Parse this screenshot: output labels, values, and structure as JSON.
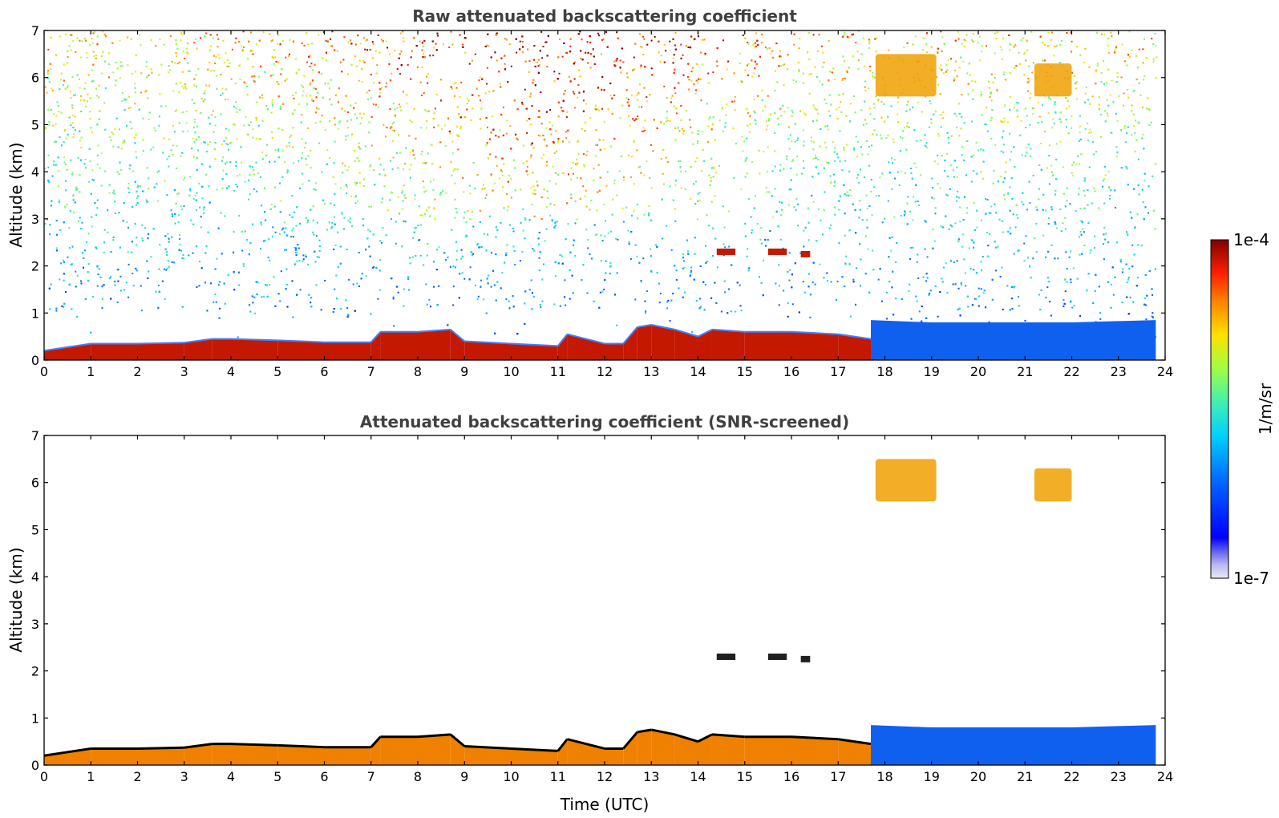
{
  "chart_data": [
    {
      "type": "heatmap",
      "title": "Raw attenuated backscattering coefficient",
      "xlabel": "",
      "ylabel": "Altitude (km)",
      "xlim": [
        0,
        24
      ],
      "ylim": [
        0,
        7
      ],
      "x_ticks": [
        "0",
        "1",
        "2",
        "3",
        "4",
        "5",
        "6",
        "7",
        "8",
        "9",
        "10",
        "11",
        "12",
        "13",
        "14",
        "15",
        "16",
        "17",
        "18",
        "19",
        "20",
        "21",
        "22",
        "23",
        "24"
      ],
      "y_ticks": [
        "0",
        "1",
        "2",
        "3",
        "4",
        "5",
        "6",
        "7"
      ],
      "grid": false,
      "boundary_layer": {
        "x": [
          0,
          1,
          2,
          3,
          3.6,
          4,
          5,
          6,
          7,
          7.2,
          8,
          8.7,
          9,
          10,
          11,
          11.2,
          12,
          12.4,
          12.7,
          13,
          13.5,
          14,
          14.3,
          15,
          16,
          17,
          17.7
        ],
        "top_km": [
          0.2,
          0.35,
          0.35,
          0.37,
          0.45,
          0.45,
          0.42,
          0.38,
          0.38,
          0.6,
          0.6,
          0.65,
          0.4,
          0.35,
          0.3,
          0.55,
          0.35,
          0.35,
          0.7,
          0.75,
          0.65,
          0.5,
          0.65,
          0.6,
          0.6,
          0.55,
          0.45
        ]
      },
      "noise_level": "high",
      "cirrus_clouds": [
        {
          "x_start": 17.8,
          "x_end": 19.1,
          "y_bottom_km": 5.6,
          "y_top_km": 6.5
        },
        {
          "x_start": 21.2,
          "x_end": 22.0,
          "y_bottom_km": 5.6,
          "y_top_km": 6.3
        }
      ],
      "mid_clouds": [
        {
          "x_start": 14.4,
          "x_end": 14.8,
          "altitude_km": 2.3
        },
        {
          "x_start": 15.5,
          "x_end": 15.9,
          "altitude_km": 2.3
        },
        {
          "x_start": 16.2,
          "x_end": 16.4,
          "altitude_km": 2.25
        }
      ]
    },
    {
      "type": "heatmap",
      "title": "Attenuated backscattering coefficient (SNR-screened)",
      "xlabel": "Time (UTC)",
      "ylabel": "Altitude (km)",
      "xlim": [
        0,
        24
      ],
      "ylim": [
        0,
        7
      ],
      "x_ticks": [
        "0",
        "1",
        "2",
        "3",
        "4",
        "5",
        "6",
        "7",
        "8",
        "9",
        "10",
        "11",
        "12",
        "13",
        "14",
        "15",
        "16",
        "17",
        "18",
        "19",
        "20",
        "21",
        "22",
        "23",
        "24"
      ],
      "y_ticks": [
        "0",
        "1",
        "2",
        "3",
        "4",
        "5",
        "6",
        "7"
      ],
      "grid": false,
      "noise_level": "none",
      "boundary_layer": {
        "x": [
          0,
          1,
          2,
          3,
          3.6,
          4,
          5,
          6,
          7,
          7.2,
          8,
          8.7,
          9,
          10,
          11,
          11.2,
          12,
          12.4,
          12.7,
          13,
          13.5,
          14,
          14.3,
          15,
          16,
          17,
          17.7
        ],
        "top_km": [
          0.2,
          0.35,
          0.35,
          0.37,
          0.45,
          0.45,
          0.42,
          0.38,
          0.38,
          0.6,
          0.6,
          0.65,
          0.4,
          0.35,
          0.3,
          0.55,
          0.35,
          0.35,
          0.7,
          0.75,
          0.65,
          0.5,
          0.65,
          0.6,
          0.6,
          0.55,
          0.45
        ]
      },
      "cirrus_clouds": [
        {
          "x_start": 17.8,
          "x_end": 19.1,
          "y_bottom_km": 5.6,
          "y_top_km": 6.5
        },
        {
          "x_start": 21.2,
          "x_end": 22.0,
          "y_bottom_km": 5.6,
          "y_top_km": 6.3
        }
      ],
      "mid_clouds": [
        {
          "x_start": 14.4,
          "x_end": 14.8,
          "altitude_km": 2.3
        },
        {
          "x_start": 15.5,
          "x_end": 15.9,
          "altitude_km": 2.3
        },
        {
          "x_start": 16.2,
          "x_end": 16.4,
          "altitude_km": 2.25
        }
      ]
    }
  ],
  "colorbar": {
    "label": "1/m/sr",
    "max_label": "1e-4",
    "min_label": "1e-7",
    "scale": "log",
    "colormap": "jet",
    "range": [
      1e-07,
      0.0001
    ]
  }
}
